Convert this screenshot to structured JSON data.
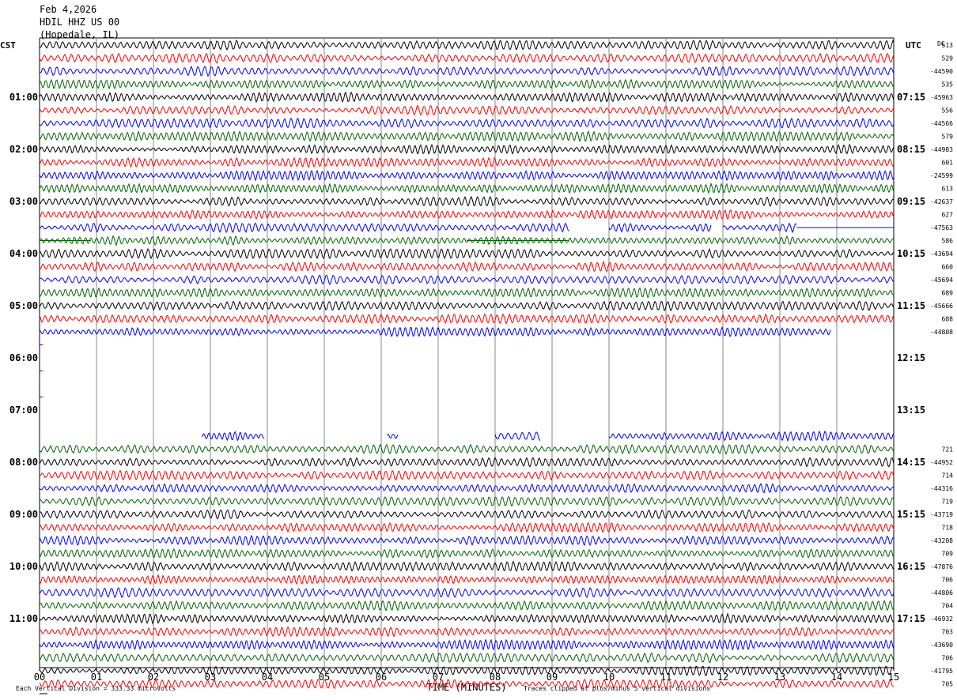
{
  "header": {
    "date": "Feb 4,2026",
    "station": "HDIL HHZ US 00",
    "location": "(Hopedale, IL)"
  },
  "chart_data": {
    "type": "line",
    "title": "Feb 4,2026 HDIL HHZ US 00 (Hopedale, IL)",
    "left_axis_label": "CST",
    "right_axis_label": "UTC",
    "dc_label": "DC",
    "xlabel": "TIME (MINUTES)",
    "x_ticks": [
      "00",
      "01",
      "02",
      "03",
      "04",
      "05",
      "06",
      "07",
      "08",
      "09",
      "10",
      "11",
      "12",
      "13",
      "14",
      "15"
    ],
    "xlim": [
      0,
      15
    ],
    "left_hour_labels": [
      "01:00",
      "02:00",
      "03:00",
      "04:00",
      "05:00",
      "06:00",
      "07:00",
      "08:00",
      "09:00",
      "10:00",
      "11:00"
    ],
    "right_hour_labels": [
      "07:15",
      "08:15",
      "09:15",
      "10:15",
      "11:15",
      "12:15",
      "13:15",
      "14:15",
      "15:15",
      "16:15",
      "17:15"
    ],
    "trace_colors": [
      "#000000",
      "#ff0000",
      "#0000ff",
      "#006400"
    ],
    "dc_offsets": [
      "513",
      "529",
      "-44590",
      "535",
      "-45963",
      "556",
      "-44566",
      "579",
      "-44983",
      "601",
      "-24599",
      "613",
      "-42637",
      "627",
      "-47563",
      "586",
      "-43694",
      "660",
      "-45694",
      "689",
      "-45666",
      "688",
      "-44808",
      "",
      "",
      "",
      "",
      "",
      "",
      "",
      "",
      "721",
      "-44952",
      "714",
      "-44316",
      "719",
      "-43719",
      "718",
      "-43208",
      "709",
      "-47876",
      "706",
      "-44806",
      "704",
      "-46932",
      "703",
      "-43690",
      "706",
      "-41795",
      "705"
    ],
    "trace_segments": [
      [
        [
          0,
          15
        ]
      ],
      [
        [
          0,
          15
        ]
      ],
      [
        [
          0,
          15
        ]
      ],
      [
        [
          0,
          15
        ]
      ],
      [
        [
          0,
          15
        ]
      ],
      [
        [
          0,
          15
        ]
      ],
      [
        [
          0,
          15
        ]
      ],
      [
        [
          0,
          15
        ]
      ],
      [
        [
          0,
          15
        ]
      ],
      [
        [
          0,
          15
        ]
      ],
      [
        [
          0,
          15
        ]
      ],
      [
        [
          0,
          15
        ]
      ],
      [
        [
          0,
          15
        ]
      ],
      [
        [
          0,
          15
        ]
      ],
      [
        [
          0,
          9.3
        ],
        [
          10.0,
          11.8
        ],
        [
          12.0,
          13.3
        ]
      ],
      [
        [
          0,
          15
        ]
      ],
      [
        [
          0,
          15
        ]
      ],
      [
        [
          0,
          15
        ]
      ],
      [
        [
          0,
          15
        ]
      ],
      [
        [
          0,
          15
        ]
      ],
      [
        [
          0,
          15
        ]
      ],
      [
        [
          0,
          15
        ]
      ],
      [
        [
          0,
          13.9
        ]
      ],
      [],
      [],
      [],
      [],
      [],
      [],
      [],
      [
        [
          2.85,
          3.95
        ],
        [
          6.1,
          6.3
        ],
        [
          8.0,
          8.8
        ],
        [
          10.0,
          15
        ]
      ],
      [
        [
          0,
          15
        ]
      ],
      [
        [
          0,
          15
        ]
      ],
      [
        [
          0,
          15
        ]
      ],
      [
        [
          0,
          15
        ]
      ],
      [
        [
          0,
          15
        ]
      ],
      [
        [
          0,
          15
        ]
      ],
      [
        [
          0,
          15
        ]
      ],
      [
        [
          0,
          15
        ]
      ],
      [
        [
          0,
          15
        ]
      ],
      [
        [
          0,
          15
        ]
      ],
      [
        [
          0,
          15
        ]
      ],
      [
        [
          0,
          15
        ]
      ],
      [
        [
          0,
          15
        ]
      ],
      [
        [
          0,
          15
        ]
      ],
      [
        [
          0,
          15
        ]
      ],
      [
        [
          0,
          15
        ]
      ],
      [
        [
          0,
          15
        ]
      ],
      [
        [
          0,
          15
        ]
      ],
      [
        [
          0,
          15
        ]
      ]
    ],
    "flat_segments": [
      [
        14,
        13.3,
        15
      ],
      [
        15,
        0,
        0.9
      ],
      [
        15,
        7.5,
        9.3
      ]
    ],
    "footer_vertical_division": "Each Vertical Division =  333.33 microvolts",
    "footer_clip_note": "Traces clipped at plus/minus 5 vertical divisions"
  }
}
